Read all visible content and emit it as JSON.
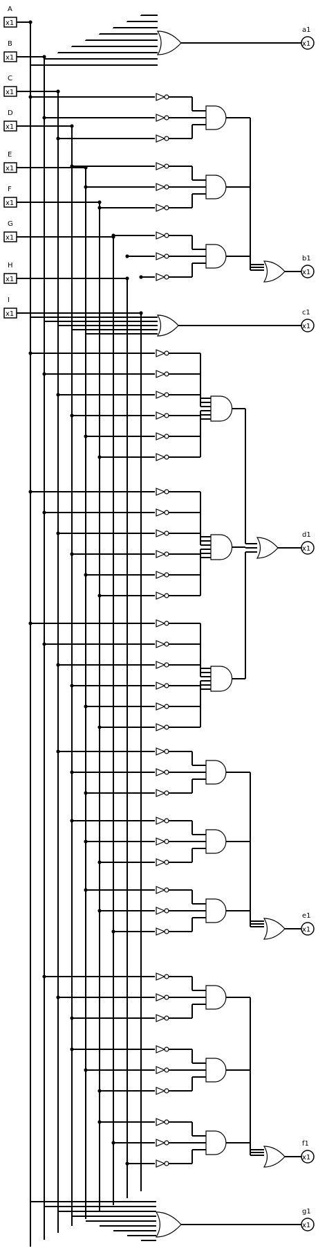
{
  "inputs": [
    {
      "name": "A",
      "pin": "x1"
    },
    {
      "name": "B",
      "pin": "x1"
    },
    {
      "name": "C",
      "pin": "x1"
    },
    {
      "name": "D",
      "pin": "x1"
    },
    {
      "name": "E",
      "pin": "x1"
    },
    {
      "name": "F",
      "pin": "x1"
    },
    {
      "name": "G",
      "pin": "x1"
    },
    {
      "name": "H",
      "pin": "x1"
    },
    {
      "name": "I",
      "pin": "x1"
    }
  ],
  "outputs": [
    {
      "name": "a1",
      "pin": "x1"
    },
    {
      "name": "b1",
      "pin": "x1"
    },
    {
      "name": "c1",
      "pin": "x1"
    },
    {
      "name": "d1",
      "pin": "x1"
    },
    {
      "name": "e1",
      "pin": "x1"
    },
    {
      "name": "f1",
      "pin": "x1"
    },
    {
      "name": "g1",
      "pin": "x1"
    }
  ]
}
